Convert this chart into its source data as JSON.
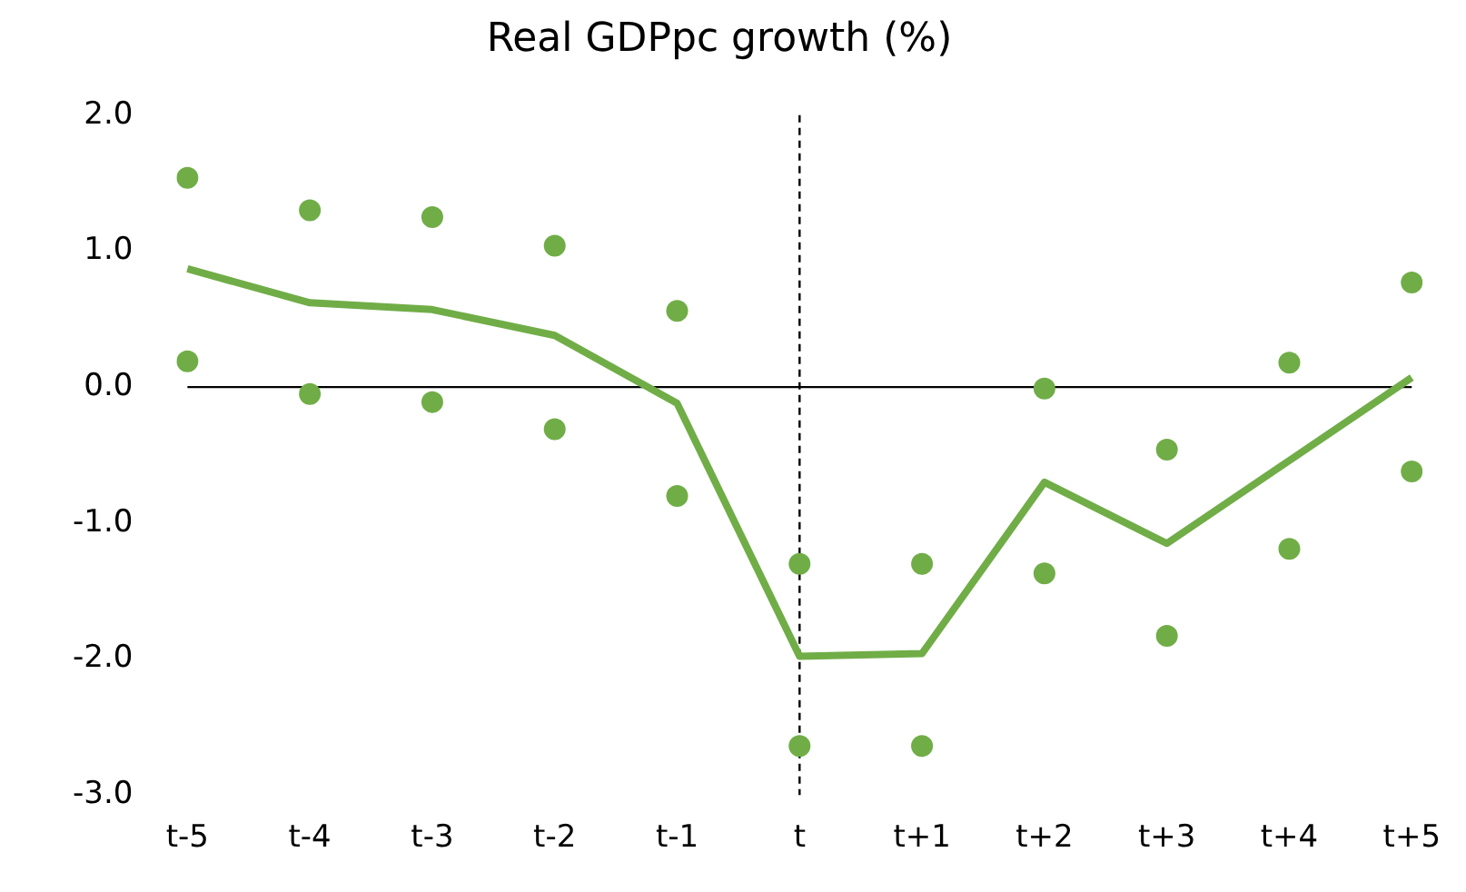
{
  "chart_data": {
    "type": "line",
    "title": "Real GDPpc growth (%)",
    "categories": [
      "t-5",
      "t-4",
      "t-3",
      "t-2",
      "t-1",
      "t",
      "t+1",
      "t+2",
      "t+3",
      "t+4",
      "t+5"
    ],
    "series": [
      {
        "type": "line",
        "color": "#70ad47",
        "values": [
          0.87,
          0.62,
          0.57,
          0.38,
          -0.12,
          -1.98,
          -1.96,
          -0.7,
          -1.15,
          -0.54,
          0.07
        ]
      },
      {
        "type": "scatter",
        "color": "#70ad47",
        "x": [
          "t-5",
          "t-4",
          "t-3",
          "t-2",
          "t-1",
          "t",
          "t+1",
          "t+2",
          "t+3",
          "t+4",
          "t+5"
        ],
        "values": [
          1.54,
          1.3,
          1.25,
          1.04,
          0.56,
          -1.3,
          -1.3,
          -0.01,
          -0.46,
          0.18,
          0.77
        ]
      },
      {
        "type": "scatter",
        "color": "#70ad47",
        "x": [
          "t-5",
          "t-4",
          "t-3",
          "t-2",
          "t-1",
          "t",
          "t+1",
          "t+2",
          "t+3",
          "t+4",
          "t+5"
        ],
        "values": [
          0.19,
          -0.05,
          -0.11,
          -0.31,
          -0.8,
          -2.64,
          -2.64,
          -1.37,
          -1.83,
          -1.19,
          -0.62
        ]
      }
    ],
    "ylim": [
      -3,
      2
    ],
    "yticks": [
      {
        "value": -3,
        "label": "-3.0"
      },
      {
        "value": -2,
        "label": "-2.0"
      },
      {
        "value": -1,
        "label": "-1.0"
      },
      {
        "value": 0,
        "label": "0.0"
      },
      {
        "value": 1,
        "label": "1.0"
      },
      {
        "value": 2,
        "label": "2.0"
      }
    ],
    "ref_lines": [
      {
        "axis": "y",
        "value": 0,
        "color": "#000000",
        "line_style": "solid"
      },
      {
        "axis": "x",
        "value": "t",
        "color": "#000000",
        "line_style": "dashed"
      }
    ],
    "grid": false,
    "legend": false
  }
}
